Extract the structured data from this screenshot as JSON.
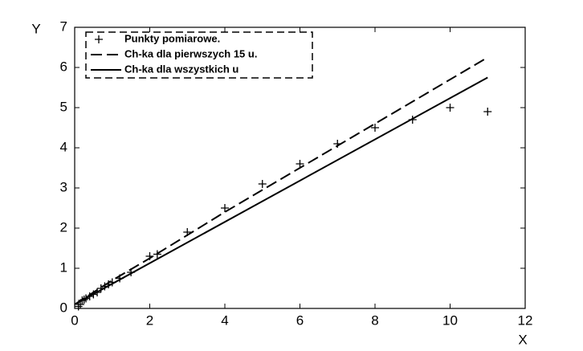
{
  "chart_data": {
    "type": "line",
    "xlabel": "X",
    "ylabel": "Y",
    "xlim": [
      0,
      12
    ],
    "ylim": [
      0,
      7
    ],
    "xticks": [
      0,
      2,
      4,
      6,
      8,
      10,
      12
    ],
    "yticks": [
      0,
      1,
      2,
      3,
      4,
      5,
      6,
      7
    ],
    "legend": "upper left",
    "series": [
      {
        "name": "Punkty pomiarowe.",
        "style": "markers",
        "color": "#000000",
        "x": [
          0.1,
          0.15,
          0.2,
          0.25,
          0.3,
          0.4,
          0.5,
          0.6,
          0.7,
          0.8,
          0.9,
          1.0,
          1.2,
          1.5,
          2,
          2.2,
          3,
          4,
          5,
          6,
          7,
          8,
          9,
          10,
          11
        ],
        "values": [
          0.05,
          0.1,
          0.2,
          0.22,
          0.25,
          0.3,
          0.35,
          0.4,
          0.5,
          0.55,
          0.6,
          0.65,
          0.75,
          0.9,
          1.3,
          1.35,
          1.9,
          2.5,
          3.1,
          3.6,
          4.1,
          4.5,
          4.7,
          5.0,
          4.9
        ]
      },
      {
        "name": "Ch-ka dla pierwszych 15 u.",
        "style": "dashed",
        "color": "#000000",
        "x": [
          0,
          1,
          2,
          4,
          6,
          8,
          11
        ],
        "values": [
          0.1,
          0.7,
          1.25,
          2.4,
          3.5,
          4.6,
          6.25
        ]
      },
      {
        "name": "Ch-ka dla wszystkich u",
        "style": "solid",
        "color": "#000000",
        "x": [
          0,
          11
        ],
        "values": [
          0.1,
          5.75
        ]
      }
    ]
  }
}
